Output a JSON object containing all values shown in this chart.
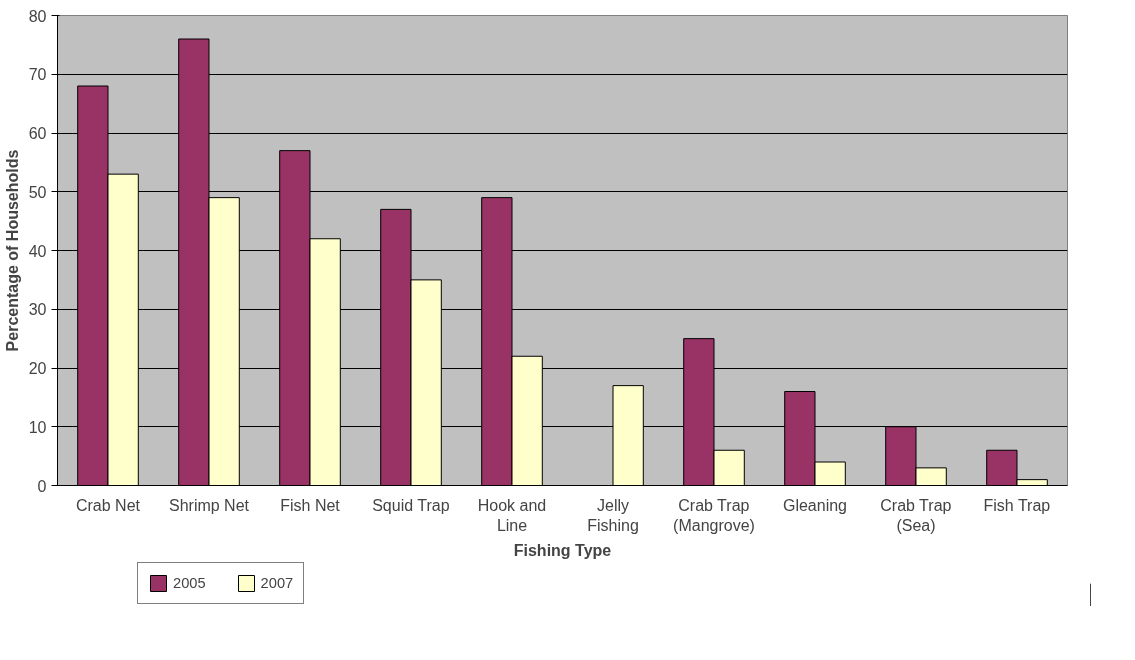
{
  "chart_data": {
    "type": "bar",
    "xlabel": "Fishing Type",
    "ylabel": "Percentage of Households",
    "categories": [
      "Crab Net",
      "Shrimp Net",
      "Fish Net",
      "Squid Trap",
      "Hook and Line",
      "Jelly Fishing",
      "Crab Trap (Mangrove)",
      "Gleaning",
      "Crab Trap (Sea)",
      "Fish Trap"
    ],
    "series": [
      {
        "name": "2005",
        "color": "#993366",
        "values": [
          68,
          76,
          57,
          47,
          49,
          null,
          25,
          16,
          10,
          6
        ]
      },
      {
        "name": "2007",
        "color": "#ffffcc",
        "values": [
          53,
          49,
          42,
          35,
          22,
          17,
          6,
          4,
          3,
          1
        ]
      }
    ],
    "ylim": [
      0,
      80
    ],
    "yticks": [
      0,
      10,
      20,
      30,
      40,
      50,
      60,
      70,
      80
    ],
    "grid": "y",
    "legend": "bottom left"
  }
}
